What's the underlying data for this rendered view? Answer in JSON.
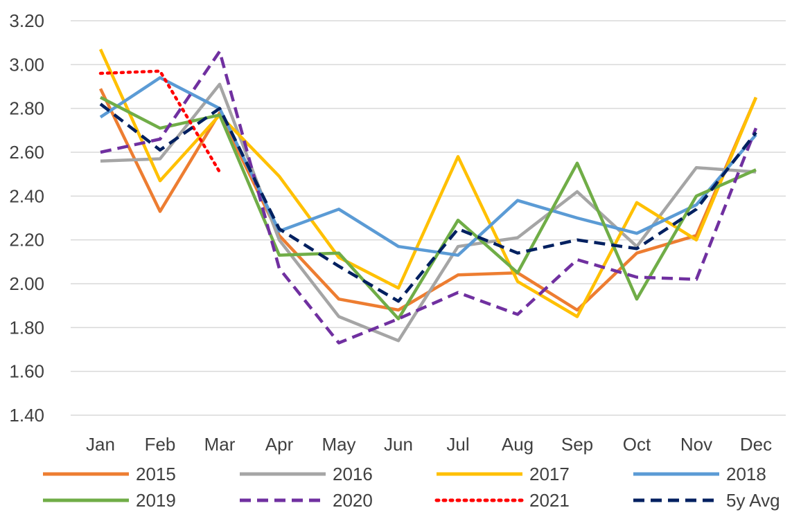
{
  "chart_data": {
    "type": "line",
    "categories": [
      "Jan",
      "Feb",
      "Mar",
      "Apr",
      "May",
      "Jun",
      "Jul",
      "Aug",
      "Sep",
      "Oct",
      "Nov",
      "Dec"
    ],
    "ylim": [
      1.4,
      3.2
    ],
    "yticks": [
      "1.40",
      "1.60",
      "1.80",
      "2.00",
      "2.20",
      "2.40",
      "2.60",
      "2.80",
      "3.00",
      "3.20"
    ],
    "grid": true,
    "legend_position": "bottom",
    "series": [
      {
        "name": "2015",
        "color": "#ED7D31",
        "style": "solid",
        "values": [
          2.89,
          2.33,
          2.78,
          2.22,
          1.93,
          1.88,
          2.04,
          2.05,
          1.88,
          2.14,
          2.22,
          2.85
        ]
      },
      {
        "name": "2016",
        "color": "#A5A5A5",
        "style": "solid",
        "values": [
          2.56,
          2.57,
          2.91,
          2.2,
          1.85,
          1.74,
          2.17,
          2.21,
          2.42,
          2.17,
          2.53,
          2.51
        ]
      },
      {
        "name": "2017",
        "color": "#FFC000",
        "style": "solid",
        "values": [
          3.07,
          2.47,
          2.77,
          2.49,
          2.12,
          1.98,
          2.58,
          2.01,
          1.85,
          2.37,
          2.2,
          2.85
        ]
      },
      {
        "name": "2018",
        "color": "#5B9BD5",
        "style": "solid",
        "values": [
          2.76,
          2.94,
          2.8,
          2.24,
          2.34,
          2.17,
          2.13,
          2.38,
          2.3,
          2.23,
          2.36,
          2.68
        ]
      },
      {
        "name": "2019",
        "color": "#70AD47",
        "style": "solid",
        "values": [
          2.85,
          2.71,
          2.77,
          2.13,
          2.14,
          1.84,
          2.29,
          2.05,
          2.55,
          1.93,
          2.4,
          2.52
        ]
      },
      {
        "name": "2020",
        "color": "#7030A0",
        "style": "dash",
        "values": [
          2.6,
          2.66,
          3.06,
          2.07,
          1.73,
          1.84,
          1.96,
          1.86,
          2.11,
          2.03,
          2.02,
          2.71
        ]
      },
      {
        "name": "2021",
        "color": "#FF0000",
        "style": "dot",
        "values": [
          2.96,
          2.97,
          2.51,
          null,
          null,
          null,
          null,
          null,
          null,
          null,
          null,
          null
        ]
      },
      {
        "name": "5y Avg",
        "color": "#002060",
        "style": "dash",
        "values": [
          2.82,
          2.61,
          2.8,
          2.25,
          2.08,
          1.92,
          2.25,
          2.14,
          2.2,
          2.16,
          2.34,
          2.69
        ]
      }
    ]
  }
}
